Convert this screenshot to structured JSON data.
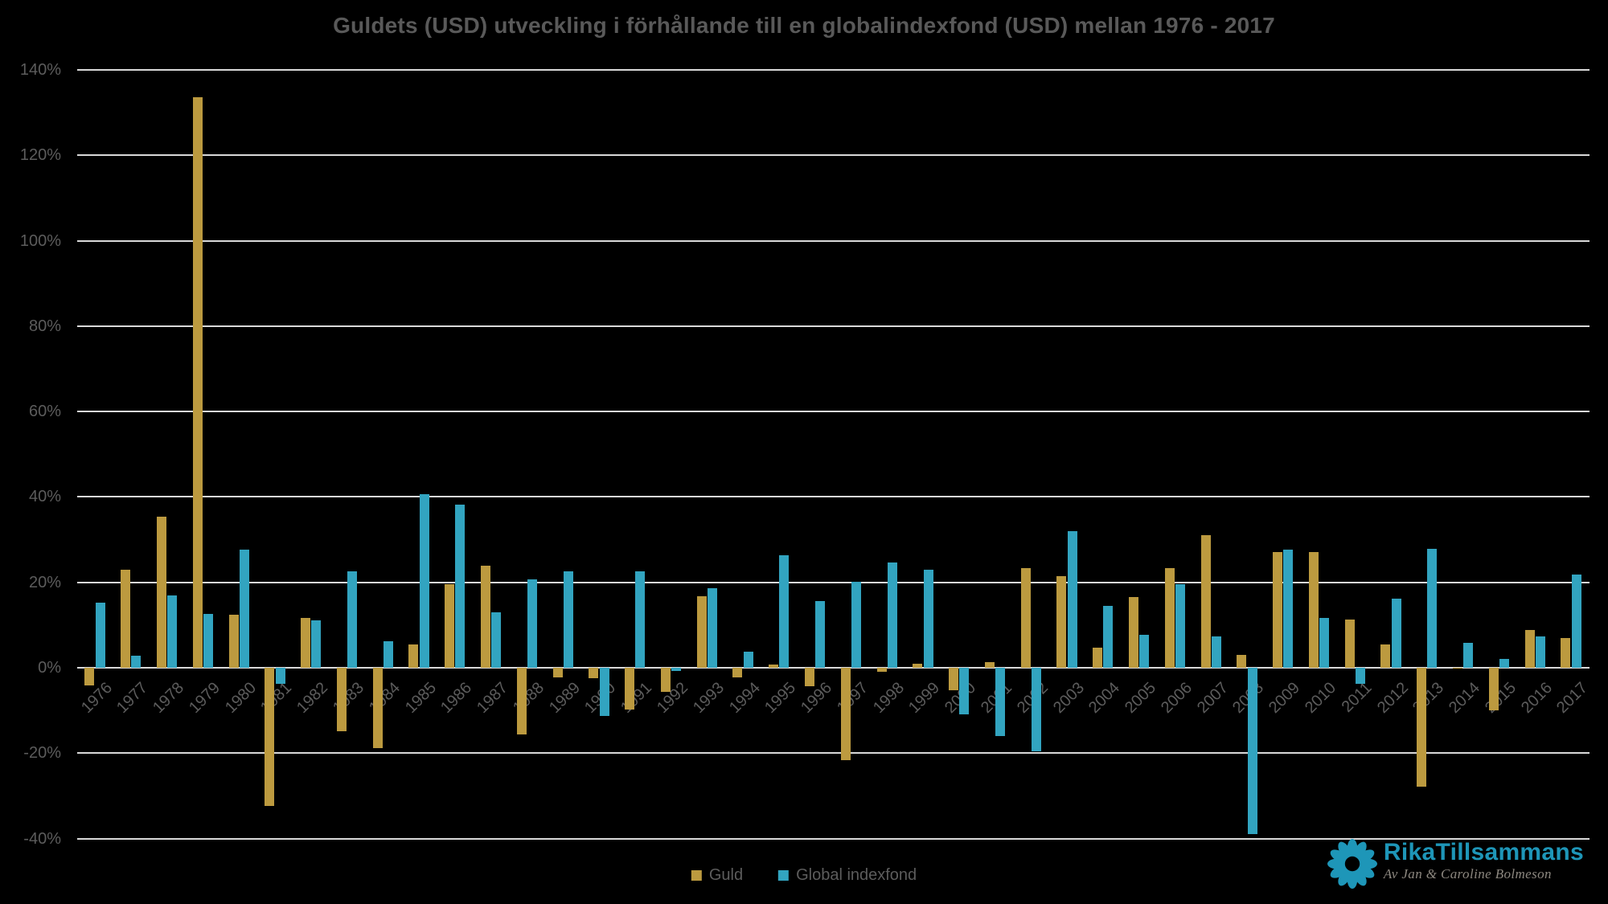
{
  "title": "Guldets (USD) utveckling i förhållande till en globalindexfond (USD) mellan 1976 - 2017",
  "colors": {
    "background": "#000000",
    "gridline": "#D9D9D9",
    "axis_text": "#5c5c5c",
    "title_text": "#595959",
    "gold": "#BC9A3F",
    "blue": "#32A4C0",
    "logo_blue": "#1E96B8",
    "logo_tagline": "#8D8880"
  },
  "y_axis": {
    "ticks": [
      "140%",
      "120%",
      "100%",
      "80%",
      "60%",
      "40%",
      "20%",
      "0%",
      "-20%",
      "-40%"
    ],
    "tick_values": [
      140,
      120,
      100,
      80,
      60,
      40,
      20,
      0,
      -20,
      -40
    ],
    "max": 140,
    "min": -40,
    "step": 20
  },
  "legend": {
    "items": [
      {
        "label": "Guld",
        "color": "#BC9A3F"
      },
      {
        "label": "Global indexfond",
        "color": "#32A4C0"
      }
    ]
  },
  "logo": {
    "icon": "flower-icon",
    "brand": "RikaTillsammans",
    "tagline": "Av Jan & Caroline Bolmeson"
  },
  "chart_data": {
    "type": "bar",
    "title": "Guldets (USD) utveckling i förhållande till en globalindexfond (USD) mellan 1976 - 2017",
    "xlabel": "",
    "ylabel": "",
    "ylim": [
      -40,
      140
    ],
    "grid": true,
    "legend_position": "bottom",
    "categories": [
      "1976",
      "1977",
      "1978",
      "1979",
      "1980",
      "1981",
      "1982",
      "1983",
      "1984",
      "1985",
      "1986",
      "1987",
      "1988",
      "1989",
      "1990",
      "1991",
      "1992",
      "1993",
      "1994",
      "1995",
      "1996",
      "1997",
      "1998",
      "1999",
      "2000",
      "2001",
      "2002",
      "2003",
      "2004",
      "2005",
      "2006",
      "2007",
      "2008",
      "2009",
      "2010",
      "2011",
      "2012",
      "2013",
      "2014",
      "2015",
      "2016",
      "2017"
    ],
    "series": [
      {
        "name": "Guld",
        "color": "#BC9A3F",
        "values": [
          -4.1,
          22.9,
          35.3,
          133.5,
          12.4,
          -32.3,
          11.6,
          -14.9,
          -18.9,
          5.5,
          19.5,
          23.9,
          -15.7,
          -2.2,
          -2.5,
          -9.7,
          -5.7,
          16.8,
          -2.2,
          0.8,
          -4.4,
          -21.6,
          -0.9,
          0.9,
          -5.3,
          1.3,
          23.4,
          21.4,
          4.7,
          16.6,
          23.4,
          31.0,
          3.1,
          27.1,
          27.1,
          11.3,
          5.5,
          -27.8,
          -0.1,
          -9.9,
          8.8,
          7.0
        ]
      },
      {
        "name": "Global indexfond",
        "color": "#32A4C0",
        "values": [
          15.2,
          2.8,
          16.9,
          12.6,
          27.6,
          -3.8,
          11.1,
          22.6,
          6.3,
          40.7,
          38.2,
          13.0,
          20.7,
          22.6,
          -11.3,
          22.6,
          -0.7,
          18.6,
          3.8,
          26.3,
          15.7,
          20.1,
          24.6,
          23.0,
          -11.0,
          -16.0,
          -19.5,
          32.0,
          14.4,
          7.8,
          19.5,
          7.3,
          -39.0,
          27.6,
          11.6,
          -3.8,
          16.1,
          27.8,
          5.8,
          2.1,
          7.4,
          21.9
        ]
      }
    ]
  }
}
